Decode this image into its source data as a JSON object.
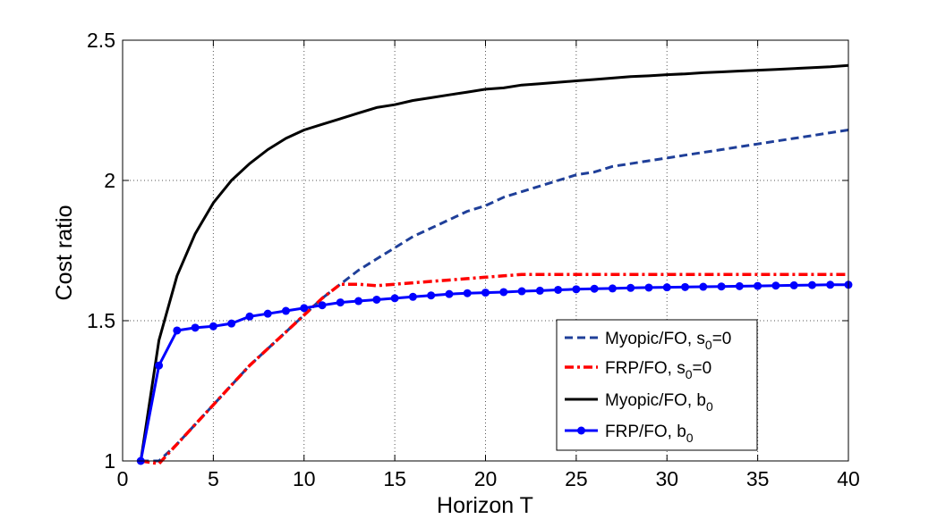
{
  "chart_data": {
    "type": "line",
    "title": "",
    "xlabel": "Horizon T",
    "ylabel": "Cost ratio",
    "xlim": [
      0,
      40
    ],
    "ylim": [
      1,
      2.5
    ],
    "xticks": [
      0,
      5,
      10,
      15,
      20,
      25,
      30,
      35,
      40
    ],
    "yticks": [
      1,
      1.5,
      2,
      2.5
    ],
    "xtick_labels": [
      "0",
      "5",
      "10",
      "15",
      "20",
      "25",
      "30",
      "35",
      "40"
    ],
    "ytick_labels": [
      "1",
      "1.5",
      "2",
      "2.5"
    ],
    "grid": true,
    "legend_position": "bottom-right",
    "series": [
      {
        "name": "Myopic/FO, s0=0",
        "label_main": "Myopic/FO, s",
        "label_sub": "0",
        "label_tail": "=0",
        "color": "#1f3f99",
        "style": "dashed",
        "x": [
          1,
          2,
          3,
          4,
          5,
          6,
          7,
          8,
          9,
          10,
          11,
          12,
          13,
          14,
          15,
          16,
          17,
          18,
          19,
          20,
          21,
          22,
          23,
          24,
          25,
          26,
          27,
          28,
          29,
          30,
          31,
          32,
          33,
          34,
          35,
          36,
          37,
          38,
          39,
          40
        ],
        "values": [
          1.0,
          1.0,
          1.06,
          1.13,
          1.2,
          1.27,
          1.34,
          1.4,
          1.46,
          1.52,
          1.58,
          1.63,
          1.68,
          1.72,
          1.76,
          1.8,
          1.83,
          1.86,
          1.89,
          1.91,
          1.94,
          1.96,
          1.98,
          2.0,
          2.02,
          2.03,
          2.05,
          2.06,
          2.07,
          2.08,
          2.09,
          2.1,
          2.11,
          2.12,
          2.13,
          2.14,
          2.15,
          2.16,
          2.17,
          2.18
        ]
      },
      {
        "name": "FRP/FO, s0=0",
        "label_main": "FRP/FO, s",
        "label_sub": "0",
        "label_tail": "=0",
        "color": "#ff0000",
        "style": "dashdot",
        "x": [
          1,
          2,
          3,
          4,
          5,
          6,
          7,
          8,
          9,
          10,
          11,
          12,
          13,
          14,
          15,
          16,
          17,
          18,
          19,
          20,
          21,
          22,
          23,
          24,
          25,
          26,
          27,
          28,
          29,
          30,
          31,
          32,
          33,
          34,
          35,
          36,
          37,
          38,
          39,
          40
        ],
        "values": [
          1.0,
          0.99,
          1.06,
          1.13,
          1.2,
          1.27,
          1.34,
          1.4,
          1.46,
          1.52,
          1.58,
          1.63,
          1.63,
          1.625,
          1.63,
          1.635,
          1.64,
          1.645,
          1.65,
          1.655,
          1.66,
          1.665,
          1.665,
          1.665,
          1.665,
          1.665,
          1.665,
          1.665,
          1.665,
          1.665,
          1.665,
          1.665,
          1.665,
          1.665,
          1.665,
          1.665,
          1.665,
          1.665,
          1.665,
          1.665
        ]
      },
      {
        "name": "Myopic/FO, b0",
        "label_main": "Myopic/FO, b",
        "label_sub": "0",
        "label_tail": "",
        "color": "#000000",
        "style": "solid",
        "x": [
          1,
          2,
          3,
          4,
          5,
          6,
          7,
          8,
          9,
          10,
          11,
          12,
          13,
          14,
          15,
          16,
          17,
          18,
          19,
          20,
          21,
          22,
          23,
          24,
          25,
          26,
          27,
          28,
          29,
          30,
          31,
          32,
          33,
          34,
          35,
          36,
          37,
          38,
          39,
          40
        ],
        "values": [
          1.0,
          1.43,
          1.66,
          1.81,
          1.92,
          2.0,
          2.06,
          2.11,
          2.15,
          2.18,
          2.2,
          2.22,
          2.24,
          2.26,
          2.27,
          2.285,
          2.295,
          2.305,
          2.315,
          2.325,
          2.33,
          2.34,
          2.345,
          2.35,
          2.355,
          2.36,
          2.365,
          2.37,
          2.373,
          2.377,
          2.38,
          2.384,
          2.387,
          2.39,
          2.393,
          2.396,
          2.399,
          2.402,
          2.405,
          2.41
        ]
      },
      {
        "name": "FRP/FO, b0",
        "label_main": "FRP/FO, b",
        "label_sub": "0",
        "label_tail": "",
        "color": "#0000ff",
        "style": "solid-markers",
        "x": [
          1,
          2,
          3,
          4,
          5,
          6,
          7,
          8,
          9,
          10,
          11,
          12,
          13,
          14,
          15,
          16,
          17,
          18,
          19,
          20,
          21,
          22,
          23,
          24,
          25,
          26,
          27,
          28,
          29,
          30,
          31,
          32,
          33,
          34,
          35,
          36,
          37,
          38,
          39,
          40
        ],
        "values": [
          1.0,
          1.34,
          1.465,
          1.475,
          1.48,
          1.49,
          1.515,
          1.525,
          1.535,
          1.545,
          1.555,
          1.565,
          1.57,
          1.575,
          1.58,
          1.585,
          1.59,
          1.595,
          1.598,
          1.6,
          1.602,
          1.605,
          1.607,
          1.61,
          1.612,
          1.614,
          1.615,
          1.617,
          1.618,
          1.619,
          1.62,
          1.621,
          1.622,
          1.623,
          1.624,
          1.625,
          1.626,
          1.627,
          1.628,
          1.628
        ]
      }
    ]
  }
}
